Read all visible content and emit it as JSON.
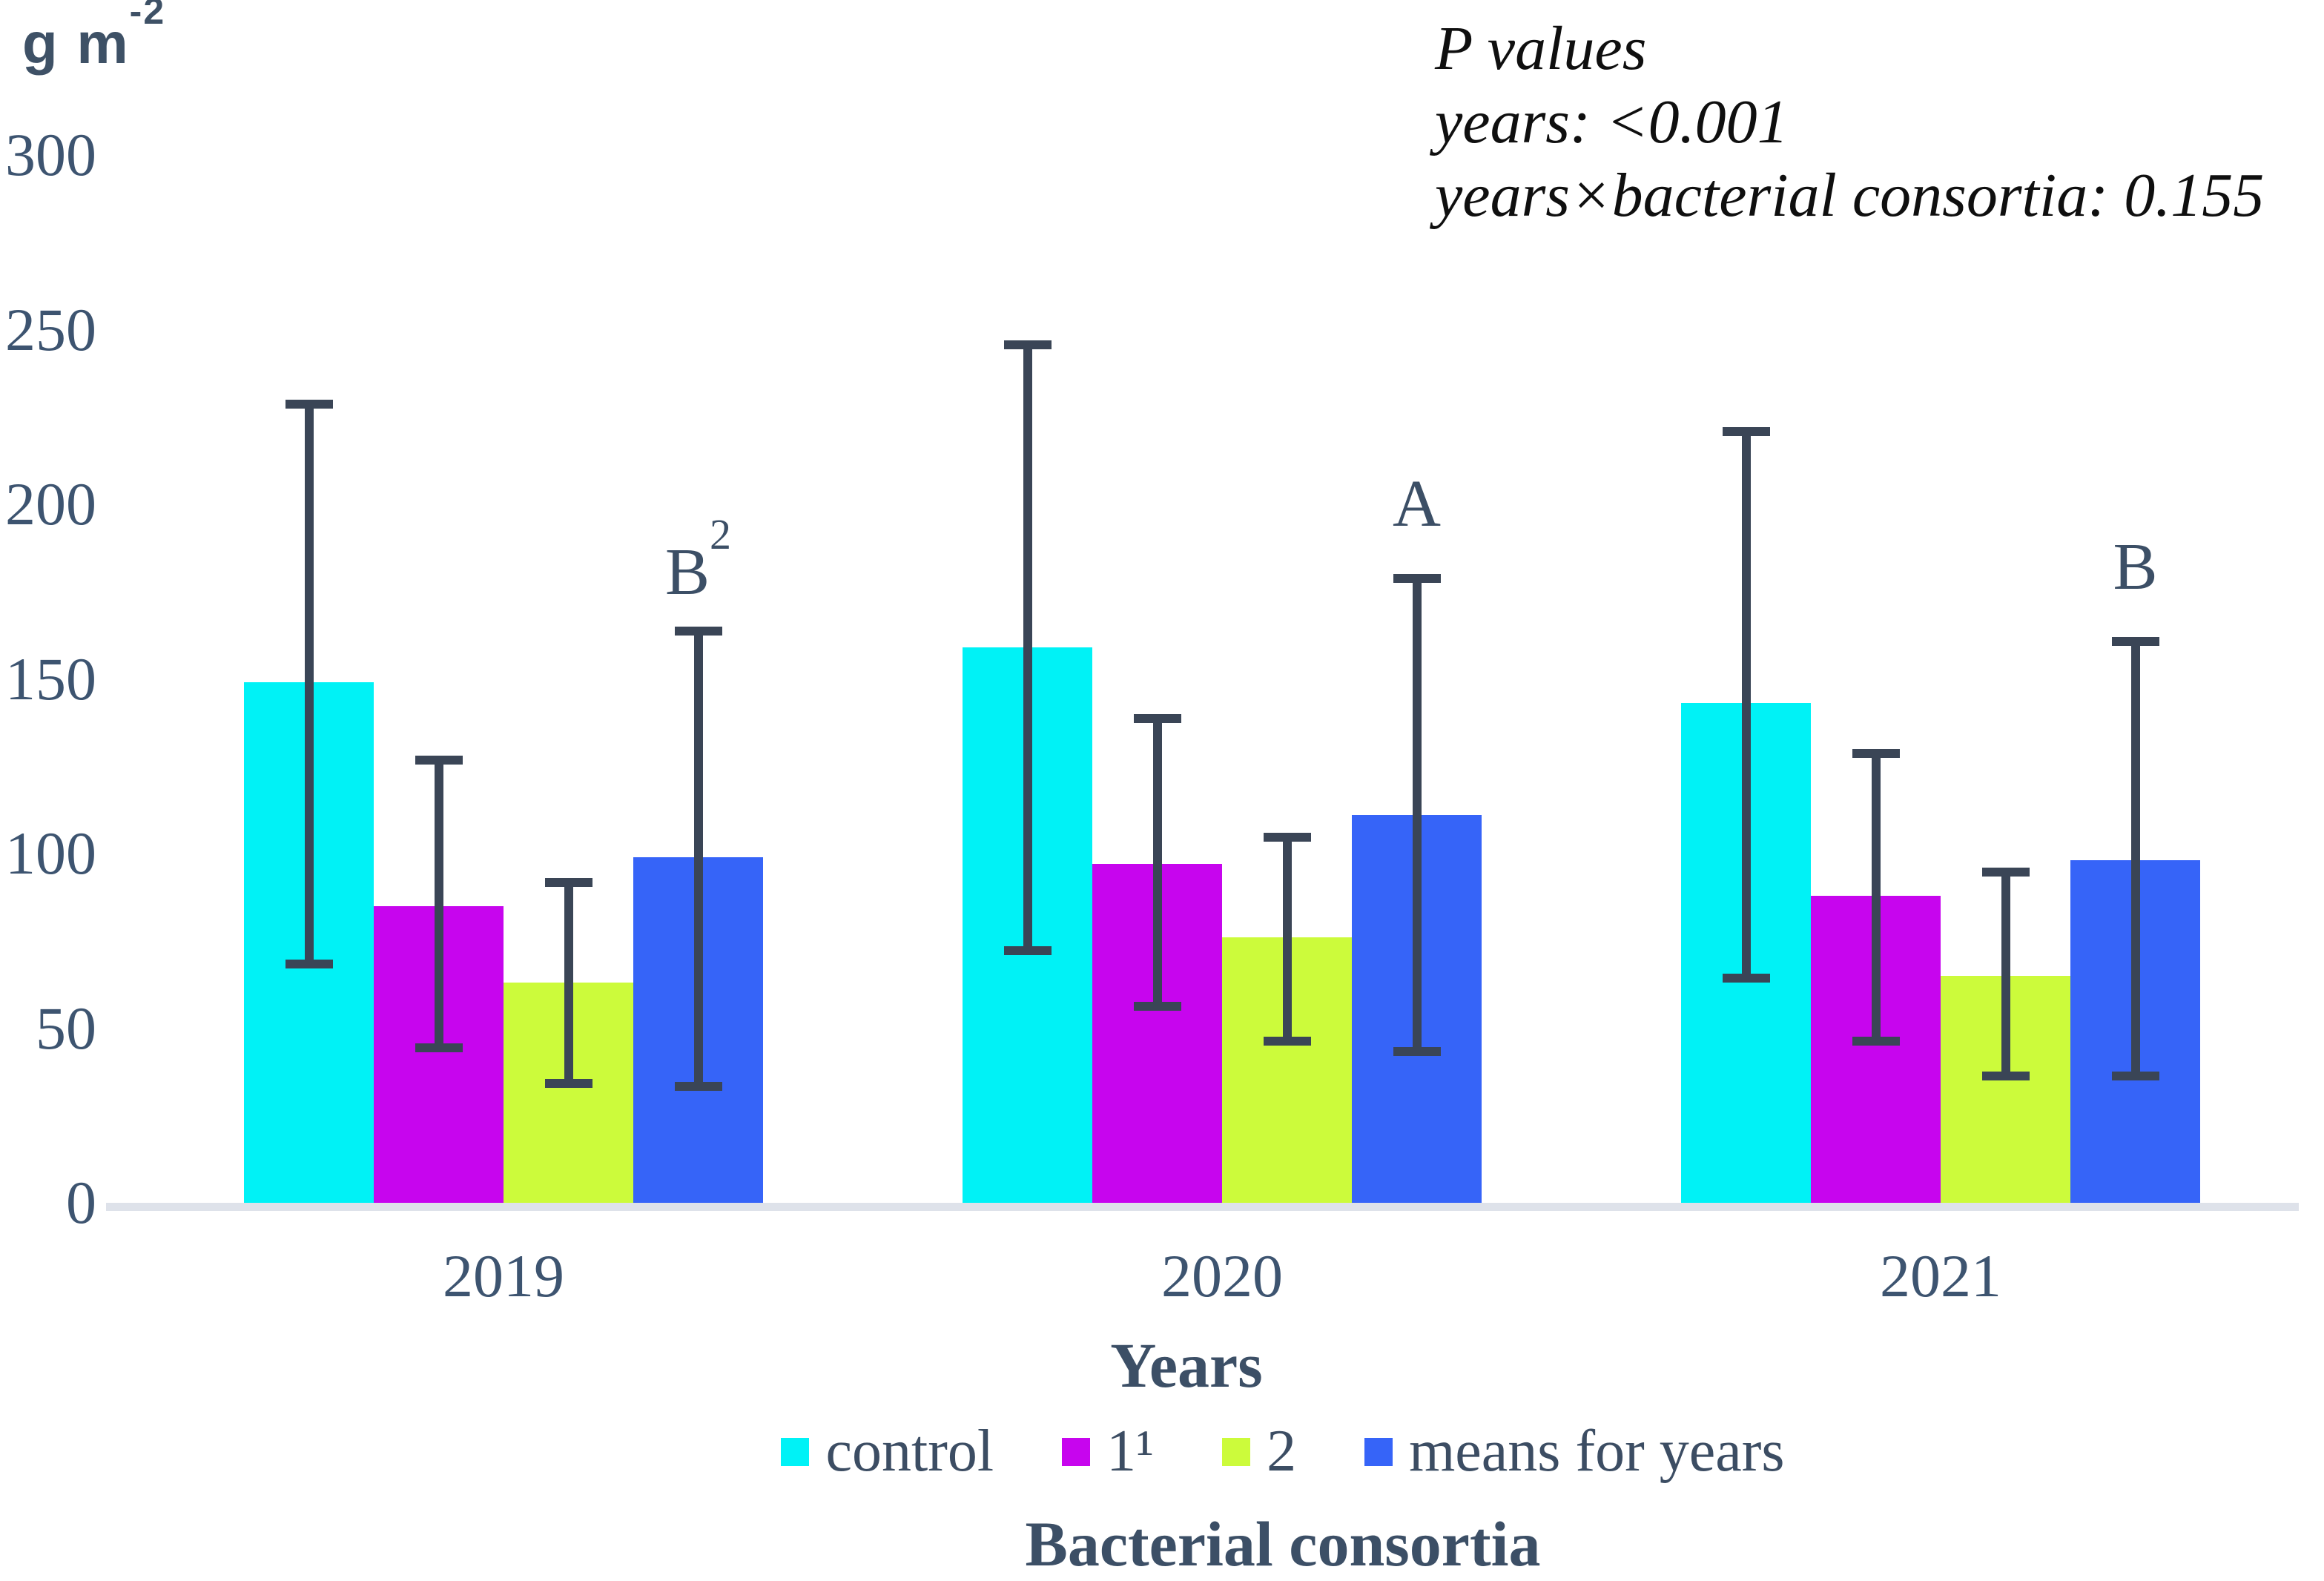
{
  "y_unit": {
    "base": "g m",
    "sup": "-2"
  },
  "p_values": {
    "title": "P values",
    "years_line": "years: <0.001",
    "interaction_line": "years×bacterial consortia: 0.155"
  },
  "x_axis_title": "Years",
  "legend_title": "Bacterial consortia",
  "chart_data": {
    "type": "bar",
    "title": "",
    "categories": [
      "2019",
      "2020",
      "2021"
    ],
    "series": [
      {
        "name": "control",
        "color": "#00F2F6",
        "values": [
          149,
          159,
          143
        ],
        "err_low": [
          67,
          71,
          63
        ],
        "err_high": [
          230,
          247,
          222
        ]
      },
      {
        "name": "1¹",
        "color": "#C705EE",
        "values": [
          85,
          97,
          88
        ],
        "err_low": [
          43,
          55,
          45
        ],
        "err_high": [
          128,
          140,
          130
        ]
      },
      {
        "name": "2",
        "color": "#CCFB3B",
        "values": [
          63,
          76,
          65
        ],
        "err_low": [
          33,
          45,
          35
        ],
        "err_high": [
          93,
          106,
          96
        ]
      },
      {
        "name": "means for years",
        "color": "#3664F8",
        "values": [
          99,
          111,
          98
        ],
        "err_low": [
          32,
          42,
          35
        ],
        "err_high": [
          165,
          180,
          162
        ]
      }
    ],
    "annotations": [
      {
        "category": "2019",
        "above_series": "means for years",
        "base": "B",
        "sup": "2"
      },
      {
        "category": "2020",
        "above_series": "means for years",
        "base": "A",
        "sup": ""
      },
      {
        "category": "2021",
        "above_series": "means for years",
        "base": "B",
        "sup": ""
      }
    ],
    "ylabel": "g m⁻²",
    "xlabel": "Years",
    "ylim": [
      0,
      300
    ],
    "yticks": [
      0,
      50,
      100,
      150,
      200,
      250,
      300
    ],
    "grid": false,
    "legend_position": "bottom",
    "colors": {
      "error_bar": "#3A4556",
      "axis_line": "#DEE2EA",
      "axis_text": "#3D5470",
      "label_text": "#3C4F66",
      "p_text": "#0F0F0F"
    }
  }
}
